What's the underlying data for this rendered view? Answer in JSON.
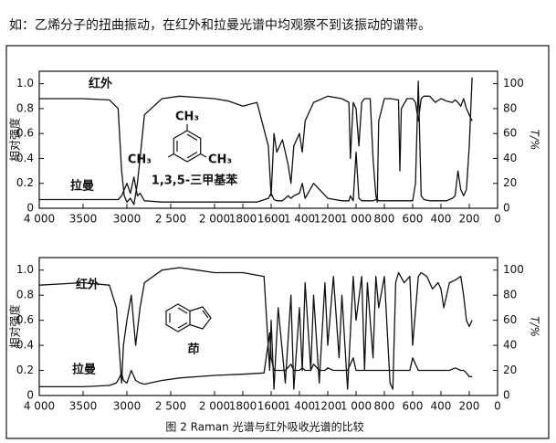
{
  "text": "如：乙烯分子的扭曲振动，在红外和拉曼光谱中均观察不到该振动的谱带。",
  "caption": "图 2 Raman 光谱与红外吸收光谱的比较",
  "chart_data": [
    {
      "type": "line",
      "ylabel": "相对强度",
      "y2label": "T/%",
      "annotations": [
        "CH₃",
        "CH₃",
        "CH₃",
        "1,3,5-三甲基苯"
      ],
      "xlim": [
        4000,
        0
      ],
      "x_scale_break": 2000,
      "xticks": [
        {
          "value": 4000,
          "label": "4 000"
        },
        3500,
        3000,
        {
          "value": 2500,
          "label": "2 500"
        },
        {
          "value": 2000,
          "label": "2 000"
        },
        1800,
        1600,
        {
          "value": 1400,
          "label": "1 400"
        },
        1200,
        {
          "value": 1000,
          "label": "1 000"
        },
        800,
        600,
        400,
        200,
        0
      ],
      "ylim": [
        0,
        1.1
      ],
      "yticks": [
        0,
        0.2,
        0.4,
        0.6,
        0.8,
        {
          "value": 1,
          "label": "1.0"
        }
      ],
      "y2lim": [
        0,
        110
      ],
      "y2ticks": [
        0,
        20,
        40,
        60,
        80,
        100
      ],
      "x": [
        4000,
        3500,
        3200,
        3100,
        3060,
        3030,
        3000,
        2960,
        2920,
        2880,
        2850,
        2800,
        2600,
        2400,
        2200,
        2000,
        1900,
        1800,
        1700,
        1620,
        1600,
        1580,
        1560,
        1520,
        1480,
        1460,
        1440,
        1400,
        1380,
        1360,
        1300,
        1200,
        1100,
        1050,
        1040,
        1020,
        1000,
        980,
        960,
        940,
        900,
        880,
        860,
        850,
        840,
        800,
        760,
        700,
        690,
        680,
        640,
        600,
        580,
        560,
        540,
        520,
        480,
        440,
        400,
        360,
        320,
        300,
        280,
        260,
        240,
        220,
        200,
        180
      ],
      "series": [
        {
          "name": "红外",
          "color": "#111111",
          "axis": "y2",
          "values": [
            88,
            88,
            87,
            80,
            30,
            10,
            5,
            8,
            3,
            20,
            40,
            75,
            88,
            90,
            89,
            88,
            86,
            82,
            85,
            50,
            10,
            60,
            45,
            55,
            35,
            20,
            50,
            60,
            45,
            70,
            85,
            90,
            88,
            85,
            40,
            85,
            80,
            50,
            85,
            88,
            88,
            40,
            10,
            5,
            70,
            88,
            88,
            87,
            30,
            80,
            88,
            88,
            85,
            70,
            88,
            90,
            90,
            85,
            88,
            86,
            85,
            87,
            85,
            82,
            88,
            80,
            75,
            70
          ]
        },
        {
          "name": "拉曼",
          "color": "#111111",
          "values": [
            0.07,
            0.07,
            0.07,
            0.07,
            0.1,
            0.15,
            0.2,
            0.12,
            0.25,
            0.1,
            0.12,
            0.06,
            0.05,
            0.05,
            0.05,
            0.05,
            0.05,
            0.05,
            0.05,
            0.08,
            0.12,
            0.07,
            0.06,
            0.06,
            0.1,
            0.08,
            0.1,
            0.12,
            0.2,
            0.08,
            0.2,
            0.08,
            0.06,
            0.06,
            0.1,
            0.06,
            0.45,
            0.08,
            0.06,
            0.06,
            0.06,
            0.06,
            0.07,
            0.07,
            0.06,
            0.06,
            0.06,
            0.06,
            0.06,
            0.06,
            0.06,
            0.06,
            0.2,
            1.02,
            0.1,
            0.07,
            0.06,
            0.06,
            0.06,
            0.06,
            0.08,
            0.1,
            0.3,
            0.15,
            0.1,
            0.15,
            0.5,
            1.05
          ]
        }
      ]
    },
    {
      "type": "line",
      "ylabel": "相对强度",
      "y2label": "T/%",
      "annotations": [
        "茚"
      ],
      "xlim": [
        4000,
        0
      ],
      "x_scale_break": 2000,
      "xticks": [
        {
          "value": 4000,
          "label": "4 000"
        },
        3500,
        3000,
        {
          "value": 2500,
          "label": "2 500"
        },
        {
          "value": 2000,
          "label": "2 000"
        },
        1800,
        1600,
        {
          "value": 1400,
          "label": "1 400"
        },
        1200,
        {
          "value": 1000,
          "label": "1 000"
        },
        800,
        600,
        400,
        200,
        0
      ],
      "ylim": [
        0,
        1.1
      ],
      "yticks": [
        0,
        0.2,
        0.4,
        0.6,
        0.8,
        {
          "value": 1,
          "label": "1.0"
        }
      ],
      "y2lim": [
        0,
        110
      ],
      "y2ticks": [
        0,
        20,
        40,
        60,
        80,
        100
      ],
      "x": [
        4000,
        3500,
        3200,
        3120,
        3080,
        3060,
        3040,
        3000,
        2950,
        2900,
        2850,
        2800,
        2600,
        2400,
        2200,
        2000,
        1800,
        1650,
        1610,
        1600,
        1580,
        1550,
        1500,
        1460,
        1440,
        1400,
        1380,
        1360,
        1320,
        1300,
        1260,
        1220,
        1200,
        1160,
        1120,
        1100,
        1060,
        1020,
        1000,
        960,
        940,
        920,
        880,
        860,
        840,
        800,
        760,
        740,
        720,
        700,
        660,
        620,
        600,
        560,
        540,
        500,
        460,
        420,
        400,
        380,
        340,
        300,
        260,
        240,
        220,
        200,
        180
      ],
      "series": [
        {
          "name": "红外",
          "color": "#111111",
          "axis": "y2",
          "values": [
            88,
            90,
            88,
            70,
            30,
            10,
            40,
            60,
            80,
            40,
            70,
            90,
            100,
            102,
            100,
            98,
            98,
            95,
            20,
            60,
            5,
            70,
            10,
            80,
            5,
            70,
            20,
            90,
            20,
            80,
            10,
            90,
            40,
            95,
            30,
            80,
            5,
            95,
            60,
            95,
            20,
            90,
            30,
            95,
            70,
            95,
            10,
            5,
            90,
            98,
            90,
            95,
            40,
            95,
            98,
            95,
            85,
            90,
            85,
            70,
            90,
            92,
            95,
            80,
            60,
            55,
            60
          ]
        },
        {
          "name": "拉曼",
          "color": "#111111",
          "values": [
            0.07,
            0.07,
            0.08,
            0.1,
            0.15,
            0.18,
            0.12,
            0.1,
            0.2,
            0.12,
            0.1,
            0.09,
            0.12,
            0.14,
            0.15,
            0.16,
            0.17,
            0.18,
            0.5,
            0.3,
            0.2,
            0.2,
            0.2,
            0.25,
            0.2,
            0.2,
            0.22,
            0.2,
            0.2,
            0.25,
            0.2,
            0.2,
            0.22,
            0.2,
            0.2,
            0.2,
            0.2,
            0.3,
            0.2,
            0.2,
            0.2,
            0.2,
            0.2,
            0.2,
            0.2,
            0.2,
            0.2,
            0.2,
            0.2,
            0.2,
            0.2,
            0.2,
            0.3,
            0.2,
            0.2,
            0.2,
            0.2,
            0.2,
            0.2,
            0.2,
            0.2,
            0.22,
            0.2,
            0.2,
            0.18,
            0.15,
            0.15
          ]
        }
      ]
    }
  ]
}
